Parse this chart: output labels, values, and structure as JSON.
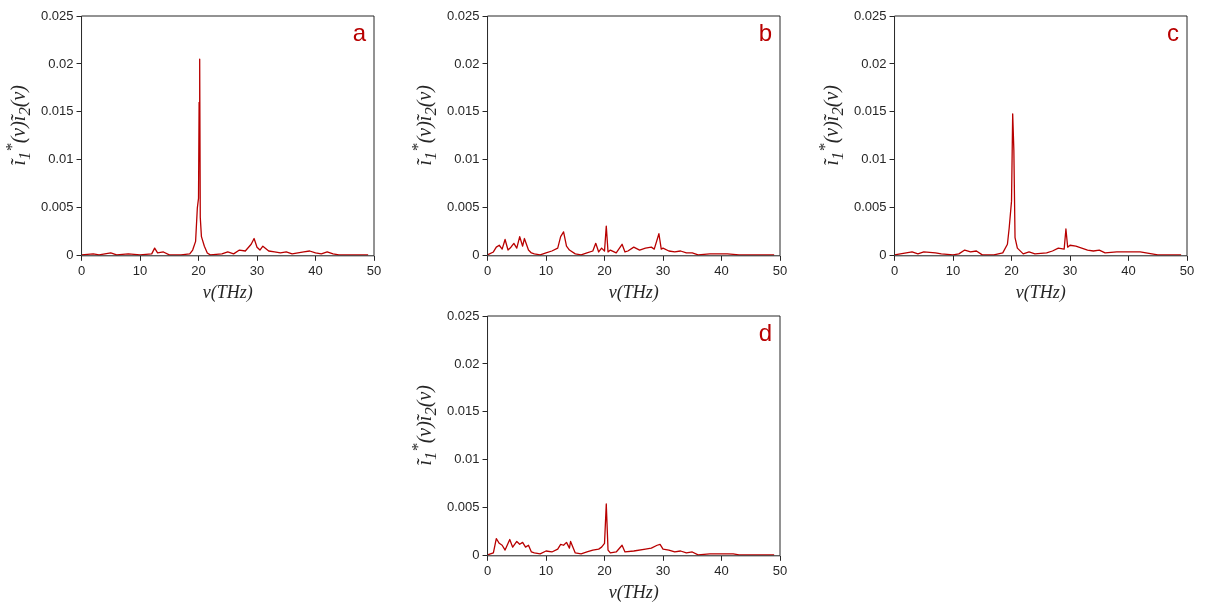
{
  "chart_data": [
    {
      "type": "line",
      "xlabel": "ν(THz)",
      "ylabel": "ĩ$_{1}$$^{*}$(ν)ĩ$_{2}$(ν)",
      "annotations": [
        "a"
      ],
      "xlim": [
        0,
        50
      ],
      "ylim": [
        0,
        0.025
      ],
      "xticks": [
        0,
        10,
        20,
        30,
        40,
        50
      ],
      "yticks": [
        0,
        0.005,
        0.01,
        0.015,
        0.02,
        0.025
      ],
      "x": [
        0,
        2,
        3,
        5,
        6,
        8,
        10,
        12,
        12.5,
        13,
        14,
        15,
        17,
        18.5,
        19,
        19.5,
        19.8,
        20,
        20.1,
        20.2,
        20.3,
        20.5,
        21,
        21.5,
        22,
        24,
        25,
        26,
        27,
        28,
        29,
        29.5,
        30,
        30.5,
        31,
        32,
        33,
        34,
        35,
        36,
        37,
        38,
        39,
        40,
        41,
        42,
        43,
        44,
        46,
        49
      ],
      "series": [
        {
          "color": "#b80000",
          "values": [
            0.0001,
            0.0002,
            0.0001,
            0.0003,
            0.0001,
            0.0002,
            0.0001,
            0.0002,
            0.0008,
            0.0003,
            0.0004,
            0.0001,
            0.0001,
            0.0002,
            0.0006,
            0.0015,
            0.005,
            0.006,
            0.016,
            0.0205,
            0.004,
            0.002,
            0.001,
            0.0003,
            0.0001,
            0.0002,
            0.0004,
            0.0002,
            0.0006,
            0.0005,
            0.0012,
            0.0018,
            0.0009,
            0.0006,
            0.001,
            0.0005,
            0.0004,
            0.0003,
            0.0004,
            0.0002,
            0.0003,
            0.0004,
            0.0005,
            0.0003,
            0.0002,
            0.0004,
            0.0002,
            0.0001,
            0.0001,
            0.0001
          ]
        }
      ]
    },
    {
      "type": "line",
      "xlabel": "ν(THz)",
      "ylabel": "ĩ$_{1}$$^{*}$(ν)ĩ$_{2}$(ν)",
      "annotations": [
        "b"
      ],
      "xlim": [
        0,
        50
      ],
      "ylim": [
        0,
        0.025
      ],
      "xticks": [
        0,
        10,
        20,
        30,
        40,
        50
      ],
      "yticks": [
        0,
        0.005,
        0.01,
        0.015,
        0.02,
        0.025
      ],
      "x": [
        0,
        1,
        1.5,
        2,
        2.5,
        3,
        3.5,
        4,
        4.5,
        5,
        5.5,
        6,
        6.3,
        7,
        7.5,
        8,
        9,
        10,
        11,
        12,
        12.5,
        13,
        13.5,
        14,
        15,
        16,
        17,
        18,
        18.5,
        19,
        19.5,
        20,
        20.3,
        20.6,
        21,
        22,
        23,
        23.5,
        24,
        25,
        26,
        27,
        28,
        28.5,
        29.3,
        29.7,
        30,
        31,
        32,
        33,
        34,
        35,
        36,
        38,
        40,
        41,
        43,
        44,
        49
      ],
      "series": [
        {
          "color": "#b80000",
          "values": [
            0.0001,
            0.0004,
            0.0009,
            0.0011,
            0.0007,
            0.0017,
            0.0006,
            0.0009,
            0.0013,
            0.0008,
            0.002,
            0.001,
            0.0018,
            0.0006,
            0.0003,
            0.0002,
            0.0001,
            0.0003,
            0.0005,
            0.0008,
            0.002,
            0.0025,
            0.001,
            0.0006,
            0.0002,
            0.0001,
            0.0003,
            0.0005,
            0.0013,
            0.0004,
            0.0008,
            0.0005,
            0.0031,
            0.0004,
            0.0006,
            0.0003,
            0.0012,
            0.0004,
            0.0005,
            0.0009,
            0.0006,
            0.0008,
            0.0009,
            0.0007,
            0.0023,
            0.0007,
            0.0008,
            0.0005,
            0.0004,
            0.0005,
            0.0003,
            0.0003,
            0.0001,
            0.0002,
            0.0002,
            0.0002,
            0.0001,
            0.0001,
            0.0001
          ]
        }
      ]
    },
    {
      "type": "line",
      "xlabel": "ν(THz)",
      "ylabel": "ĩ$_{1}$$^{*}$(ν)ĩ$_{2}$(ν)",
      "annotations": [
        "c"
      ],
      "xlim": [
        0,
        50
      ],
      "ylim": [
        0,
        0.025
      ],
      "xticks": [
        0,
        10,
        20,
        30,
        40,
        50
      ],
      "yticks": [
        0,
        0.005,
        0.01,
        0.015,
        0.02,
        0.025
      ],
      "x": [
        0,
        2,
        3,
        4,
        5,
        7,
        8,
        10,
        11,
        12,
        13,
        14,
        15,
        17,
        18.5,
        19.3,
        19.6,
        20,
        20.2,
        20.4,
        20.6,
        21,
        22,
        23,
        24,
        26,
        27,
        28,
        29,
        29.3,
        29.6,
        30,
        31,
        32,
        33,
        34,
        35,
        36,
        38,
        40,
        42,
        43,
        44,
        45,
        49
      ],
      "series": [
        {
          "color": "#b80000",
          "values": [
            0.0001,
            0.0003,
            0.0004,
            0.0002,
            0.0004,
            0.0003,
            0.0002,
            0.0001,
            0.0002,
            0.0006,
            0.0004,
            0.0005,
            0.0001,
            0.0001,
            0.0003,
            0.0012,
            0.0029,
            0.0057,
            0.0148,
            0.011,
            0.0019,
            0.0008,
            0.0002,
            0.0004,
            0.0002,
            0.0003,
            0.0005,
            0.0008,
            0.0007,
            0.0028,
            0.0009,
            0.0011,
            0.001,
            0.0008,
            0.0006,
            0.0005,
            0.0006,
            0.0003,
            0.0004,
            0.0004,
            0.0004,
            0.0003,
            0.0002,
            0.0001,
            0.0001
          ]
        }
      ]
    },
    {
      "type": "line",
      "xlabel": "ν(THz)",
      "ylabel": "ĩ$_{1}$$^{*}$(ν)ĩ$_{2}$(ν)",
      "annotations": [
        "d"
      ],
      "xlim": [
        0,
        50
      ],
      "ylim": [
        0,
        0.025
      ],
      "xticks": [
        0,
        10,
        20,
        30,
        40,
        50
      ],
      "yticks": [
        0,
        0.005,
        0.01,
        0.015,
        0.02,
        0.025
      ],
      "x": [
        0,
        1,
        1.5,
        2,
        2.5,
        3,
        3.8,
        4.3,
        5,
        5.5,
        6,
        6.5,
        7,
        7.5,
        8,
        9,
        10,
        11,
        12,
        12.5,
        13,
        13.5,
        14,
        14.2,
        15,
        16,
        17,
        18,
        19,
        19.5,
        20,
        20.3,
        20.6,
        21,
        22,
        23,
        23.5,
        25,
        27,
        28,
        29,
        29.5,
        30,
        31,
        32,
        33,
        34,
        35,
        36,
        38,
        40,
        42,
        43,
        44,
        49
      ],
      "series": [
        {
          "color": "#b80000",
          "values": [
            0.0001,
            0.0003,
            0.0018,
            0.0013,
            0.0011,
            0.0006,
            0.0017,
            0.0009,
            0.0015,
            0.0012,
            0.0014,
            0.0009,
            0.0011,
            0.0004,
            0.0003,
            0.0002,
            0.0005,
            0.0004,
            0.0007,
            0.0012,
            0.0011,
            0.0014,
            0.0008,
            0.0015,
            0.0003,
            0.0002,
            0.0004,
            0.0006,
            0.0007,
            0.0009,
            0.0013,
            0.0054,
            0.0006,
            0.0003,
            0.0004,
            0.0011,
            0.0004,
            0.0005,
            0.0007,
            0.0008,
            0.0011,
            0.0012,
            0.0007,
            0.0006,
            0.0004,
            0.0005,
            0.0003,
            0.0004,
            0.0001,
            0.0002,
            0.0002,
            0.0002,
            0.0001,
            0.0001,
            0.0001
          ]
        }
      ]
    }
  ]
}
